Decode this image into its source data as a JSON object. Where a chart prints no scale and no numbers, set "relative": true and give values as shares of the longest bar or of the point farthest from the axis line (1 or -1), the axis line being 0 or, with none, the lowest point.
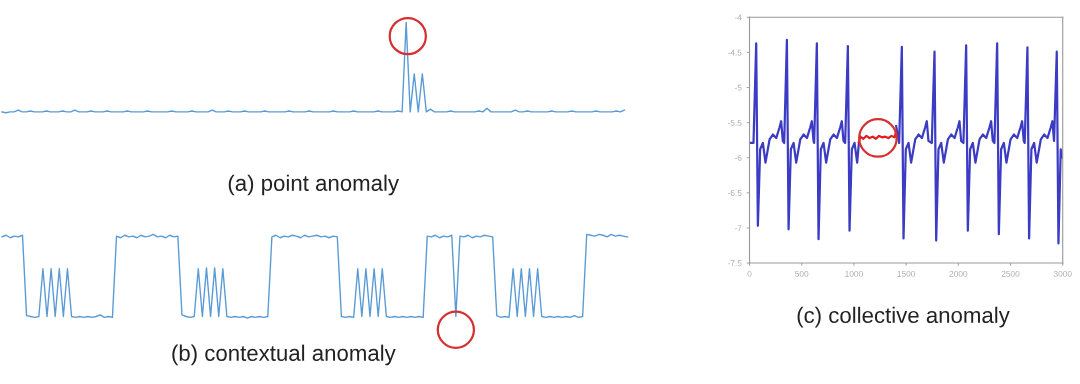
{
  "chart_data": [
    {
      "type": "line",
      "title": "(a) point anomaly",
      "relative": true,
      "categories": [
        null,
        null,
        null,
        null,
        null,
        null,
        null,
        null,
        null,
        null,
        null,
        null,
        null,
        null,
        null,
        null,
        null,
        null,
        null,
        null,
        null,
        null,
        null,
        null,
        null,
        null,
        null,
        null,
        null,
        null,
        null,
        null,
        null,
        null,
        null,
        null,
        null,
        null,
        null,
        null,
        null,
        null,
        null,
        null,
        null,
        null,
        null,
        null,
        null,
        null,
        null,
        null,
        null,
        null,
        null,
        null,
        null,
        null,
        null,
        null,
        null,
        null,
        null,
        null,
        null,
        null,
        null,
        null,
        null,
        null,
        null,
        null,
        null,
        null,
        null,
        null,
        null,
        null,
        null,
        null,
        null,
        null,
        null,
        null,
        null,
        null,
        null,
        null,
        null,
        null,
        null,
        null,
        null,
        null,
        null,
        null,
        null,
        null,
        null,
        null,
        null,
        null,
        null,
        null,
        null,
        null,
        null,
        null,
        null,
        null,
        null,
        null,
        null,
        null,
        null,
        null,
        null,
        null,
        null,
        null,
        null,
        null,
        null,
        null,
        null,
        null,
        null,
        null,
        null,
        null,
        null,
        null,
        null,
        null,
        null,
        null,
        null,
        null,
        null,
        null,
        null,
        null,
        null,
        null,
        null,
        null,
        null,
        null,
        null,
        null,
        null,
        null,
        null,
        null,
        null
      ],
      "series": [
        {
          "color": "#5b9bd5",
          "values": [
            0.01,
            0.0,
            0.01,
            0.01,
            0.03,
            0.01,
            0.01,
            0.02,
            0.01,
            0.01,
            0.01,
            0.02,
            0.01,
            0.01,
            0.01,
            0.02,
            0.01,
            0.01,
            0.03,
            0.01,
            0.01,
            0.01,
            0.02,
            0.01,
            0.01,
            0.01,
            0.02,
            0.01,
            0.01,
            0.01,
            0.01,
            0.02,
            0.01,
            0.01,
            0.01,
            0.01,
            0.02,
            0.01,
            0.01,
            0.01,
            0.01,
            0.01,
            0.02,
            0.01,
            0.01,
            0.01,
            0.01,
            0.02,
            0.01,
            0.01,
            0.01,
            0.01,
            0.03,
            0.01,
            0.01,
            0.01,
            0.02,
            0.01,
            0.01,
            0.01,
            0.02,
            0.01,
            0.01,
            0.01,
            0.01,
            0.02,
            0.01,
            0.01,
            0.01,
            0.01,
            0.01,
            0.02,
            0.01,
            0.01,
            0.01,
            0.01,
            0.02,
            0.01,
            0.01,
            0.01,
            0.01,
            0.01,
            0.02,
            0.01,
            0.01,
            0.01,
            0.01,
            0.02,
            0.01,
            0.01,
            0.01,
            0.01,
            0.01,
            0.02,
            0.01,
            0.01,
            0.01,
            0.01,
            0.02,
            0.01,
            1.0,
            0.01,
            0.43,
            0.01,
            0.43,
            0.01,
            0.04,
            0.01,
            0.01,
            0.01,
            0.01,
            0.02,
            0.01,
            0.01,
            0.01,
            0.01,
            0.01,
            0.01,
            0.02,
            0.01,
            0.05,
            0.01,
            0.01,
            0.01,
            0.01,
            0.01,
            0.01,
            0.03,
            0.01,
            0.01,
            0.02,
            0.01,
            0.01,
            0.01,
            0.01,
            0.01,
            0.02,
            0.01,
            0.01,
            0.01,
            0.01,
            0.02,
            0.01,
            0.01,
            0.01,
            0.01,
            0.01,
            0.02,
            0.01,
            0.01,
            0.01,
            0.01,
            0.02,
            0.01,
            0.03
          ]
        }
      ]
    },
    {
      "type": "line",
      "title": "(b) contextual anomaly",
      "relative": true,
      "categories": [
        null,
        null,
        null,
        null,
        null,
        null,
        null,
        null,
        null,
        null,
        null,
        null,
        null,
        null,
        null,
        null,
        null,
        null,
        null,
        null,
        null,
        null,
        null,
        null,
        null,
        null,
        null,
        null,
        null,
        null,
        null,
        null,
        null,
        null,
        null,
        null,
        null,
        null,
        null,
        null,
        null,
        null,
        null,
        null,
        null,
        null,
        null,
        null,
        null,
        null,
        null,
        null,
        null,
        null,
        null,
        null,
        null,
        null,
        null,
        null,
        null,
        null,
        null,
        null,
        null,
        null,
        null,
        null,
        null,
        null,
        null,
        null,
        null,
        null,
        null,
        null,
        null,
        null,
        null,
        null,
        null,
        null,
        null,
        null,
        null,
        null,
        null,
        null,
        null,
        null,
        null,
        null,
        null,
        null,
        null,
        null,
        null,
        null,
        null,
        null,
        null,
        null,
        null,
        null,
        null,
        null,
        null,
        null,
        null,
        null,
        null,
        null,
        null,
        null,
        null,
        null,
        null,
        null,
        null,
        null,
        null,
        null,
        null,
        null,
        null,
        null,
        null,
        null,
        null,
        null,
        null,
        null,
        null,
        null,
        null,
        null,
        null,
        null,
        null,
        null,
        null,
        null,
        null,
        null,
        null,
        null,
        null,
        null,
        null,
        null,
        null,
        null,
        null,
        null
      ],
      "series": [
        {
          "color": "#5b9bd5",
          "values": [
            0.97,
            0.99,
            0.96,
            0.98,
            0.97,
            0.99,
            0.03,
            0.02,
            0.01,
            0.02,
            0.59,
            0.02,
            0.59,
            0.02,
            0.59,
            0.02,
            0.59,
            0.02,
            0.01,
            0.02,
            0.01,
            0.02,
            0.01,
            0.02,
            0.04,
            0.01,
            0.02,
            0.01,
            0.98,
            0.96,
            0.99,
            0.97,
            0.98,
            0.96,
            0.99,
            0.97,
            0.98,
            1.0,
            0.97,
            0.98,
            0.96,
            0.99,
            0.97,
            0.98,
            0.04,
            0.02,
            0.01,
            0.02,
            0.59,
            0.02,
            0.6,
            0.02,
            0.6,
            0.02,
            0.59,
            0.02,
            0.01,
            0.02,
            0.01,
            0.02,
            0.0,
            0.02,
            0.01,
            0.02,
            0.01,
            0.02,
            0.97,
            0.99,
            0.96,
            0.98,
            0.97,
            0.99,
            0.98,
            0.96,
            0.99,
            0.97,
            0.98,
            0.99,
            0.97,
            0.98,
            0.96,
            0.98,
            0.97,
            0.02,
            0.01,
            0.02,
            0.01,
            0.59,
            0.02,
            0.59,
            0.02,
            0.59,
            0.02,
            0.59,
            0.02,
            0.01,
            0.02,
            0.01,
            0.02,
            0.01,
            0.02,
            0.01,
            0.02,
            0.01,
            0.98,
            0.97,
            0.99,
            0.96,
            0.98,
            0.97,
            0.99,
            0.02,
            0.98,
            0.97,
            0.99,
            0.96,
            0.98,
            0.97,
            0.99,
            0.98,
            0.97,
            0.03,
            0.01,
            0.02,
            0.01,
            0.59,
            0.02,
            0.59,
            0.02,
            0.59,
            0.02,
            0.59,
            0.02,
            0.01,
            0.02,
            0.01,
            0.02,
            0.01,
            0.02,
            0.01,
            0.03,
            0.01,
            0.02,
            1.0,
            0.99,
            0.98,
            1.0,
            0.99,
            0.97,
            1.0,
            0.98,
            0.99,
            0.98,
            0.97
          ]
        }
      ]
    },
    {
      "type": "line",
      "title": "(c) collective anomaly",
      "xlim": [
        0,
        3000
      ],
      "xticks": [
        0,
        500,
        1000,
        1500,
        2000,
        2500,
        3000
      ],
      "ylim": [
        -7.5,
        -4
      ],
      "yticks": [
        -7.5,
        -7,
        -6.5,
        -6,
        -5.5,
        -5,
        -4.5,
        -4
      ],
      "series": [
        {
          "color": "#3b3bc4",
          "x": [
            0,
            38,
            64,
            80,
            102,
            128,
            153,
            192,
            224,
            256,
            287,
            303,
            319,
            332,
            358,
            374,
            396,
            422,
            447,
            486,
            518,
            550,
            581,
            597,
            613,
            619,
            645,
            661,
            683,
            709,
            734,
            773,
            805,
            837,
            868,
            884,
            900,
            916,
            942,
            958,
            980,
            1006,
            1031,
            1047,
            1200,
            1405,
            1433,
            1459,
            1475,
            1497,
            1523,
            1548,
            1587,
            1619,
            1651,
            1682,
            1698,
            1714,
            1746,
            1772,
            1788,
            1810,
            1836,
            1861,
            1900,
            1932,
            1964,
            1995,
            2011,
            2027,
            2049,
            2075,
            2091,
            2113,
            2139,
            2164,
            2203,
            2235,
            2267,
            2298,
            2314,
            2330,
            2346,
            2372,
            2388,
            2410,
            2436,
            2461,
            2500,
            2532,
            2564,
            2595,
            2611,
            2627,
            2636,
            2662,
            2678,
            2700,
            2726,
            2751,
            2790,
            2822,
            2854,
            2885,
            2901,
            2917,
            2943,
            2959,
            2981,
            3000
          ],
          "values": [
            -5.79,
            -5.79,
            -4.37,
            -6.97,
            -5.88,
            -5.79,
            -6.07,
            -5.74,
            -5.67,
            -5.72,
            -5.57,
            -5.48,
            -5.76,
            -5.79,
            -4.32,
            -7.02,
            -5.88,
            -5.79,
            -6.07,
            -5.74,
            -5.67,
            -5.72,
            -5.57,
            -5.48,
            -5.76,
            -5.79,
            -4.37,
            -7.16,
            -5.88,
            -5.79,
            -6.07,
            -5.74,
            -5.67,
            -5.72,
            -5.57,
            -5.48,
            -5.76,
            -5.79,
            -4.41,
            -7.04,
            -5.88,
            -5.79,
            -6.07,
            -5.8,
            null,
            -5.55,
            -5.79,
            -4.42,
            -7.15,
            -5.88,
            -5.79,
            -6.07,
            -5.74,
            -5.67,
            -5.72,
            -5.57,
            -5.48,
            -5.76,
            -5.79,
            -4.49,
            -7.18,
            -5.88,
            -5.79,
            -6.07,
            -5.74,
            -5.67,
            -5.72,
            -5.57,
            -5.48,
            -5.76,
            -5.79,
            -4.4,
            -7.04,
            -5.88,
            -5.79,
            -6.07,
            -5.74,
            -5.67,
            -5.72,
            -5.57,
            -5.48,
            -5.76,
            -5.79,
            -4.37,
            -7.09,
            -5.88,
            -5.79,
            -6.07,
            -5.74,
            -5.67,
            -5.72,
            -5.57,
            -5.48,
            -5.76,
            -5.79,
            -4.43,
            -7.15,
            -5.88,
            -5.79,
            -6.07,
            -5.74,
            -5.67,
            -5.72,
            -5.57,
            -5.48,
            -5.76,
            -4.49,
            -7.22,
            -5.88,
            -6.0
          ]
        },
        {
          "color": "#e02020",
          "x": [
            1047,
            1060,
            1090,
            1120,
            1150,
            1180,
            1210,
            1240,
            1270,
            1300,
            1330,
            1360,
            1390,
            1405
          ],
          "values": [
            -5.78,
            -5.7,
            -5.73,
            -5.69,
            -5.72,
            -5.7,
            -5.73,
            -5.69,
            -5.71,
            -5.7,
            -5.72,
            -5.69,
            -5.71,
            -5.62
          ]
        }
      ]
    }
  ]
}
